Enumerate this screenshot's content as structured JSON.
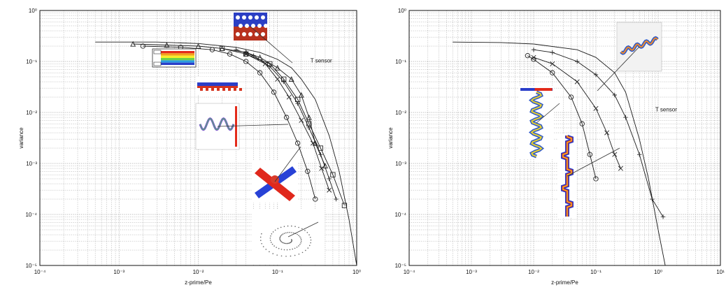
{
  "chart_data": [
    {
      "type": "line",
      "xscale": "log",
      "yscale": "log",
      "xlim": [
        0.0001,
        1
      ],
      "ylim": [
        1e-05,
        1
      ],
      "grid": true,
      "xlabel": "z-prime/Pe",
      "ylabel": "variance",
      "x_ticks": [
        "10⁻⁴",
        "10⁻³",
        "10⁻²",
        "10⁻¹",
        "10⁰"
      ],
      "y_ticks": [
        "10⁰",
        "10⁻¹",
        "10⁻²",
        "10⁻³",
        "10⁻⁴",
        "10⁻⁵"
      ],
      "annotations": [
        {
          "text": "T sensor",
          "x": 0.26,
          "y": 0.095
        }
      ],
      "series": [
        {
          "name": "",
          "marker": "none",
          "x": [
            0.0005,
            0.003,
            0.01,
            0.03,
            0.06,
            0.1,
            0.15,
            0.2,
            0.3,
            0.45,
            0.6,
            0.8,
            1.0
          ],
          "y": [
            0.24,
            0.24,
            0.225,
            0.19,
            0.15,
            0.11,
            0.075,
            0.045,
            0.018,
            0.0035,
            0.0007,
            8e-05,
            1e-05
          ]
        },
        {
          "name": "",
          "marker": "^",
          "x": [
            0.0015,
            0.004,
            0.01,
            0.02,
            0.04,
            0.06,
            0.1,
            0.15,
            0.2,
            0.25,
            0.3,
            0.4
          ],
          "y": [
            0.22,
            0.21,
            0.2,
            0.18,
            0.15,
            0.12,
            0.075,
            0.045,
            0.022,
            0.008,
            0.0025,
            0.0009
          ]
        },
        {
          "name": "",
          "marker": "o",
          "x": [
            0.002,
            0.006,
            0.015,
            0.025,
            0.04,
            0.06,
            0.09,
            0.13,
            0.18,
            0.24,
            0.3
          ],
          "y": [
            0.2,
            0.19,
            0.17,
            0.14,
            0.1,
            0.06,
            0.025,
            0.008,
            0.0025,
            0.0007,
            0.0002
          ]
        },
        {
          "name": "",
          "marker": "square",
          "x": [
            0.02,
            0.04,
            0.08,
            0.12,
            0.18,
            0.25,
            0.35,
            0.5,
            0.7
          ],
          "y": [
            0.18,
            0.14,
            0.09,
            0.045,
            0.018,
            0.006,
            0.002,
            0.0006,
            0.00015
          ]
        },
        {
          "name": "",
          "marker": "+",
          "x": [
            0.03,
            0.05,
            0.08,
            0.12,
            0.18,
            0.25,
            0.35,
            0.45,
            0.55
          ],
          "y": [
            0.17,
            0.13,
            0.08,
            0.04,
            0.015,
            0.005,
            0.0015,
            0.0005,
            0.0002
          ]
        },
        {
          "name": "",
          "marker": "x",
          "x": [
            0.04,
            0.07,
            0.1,
            0.14,
            0.2,
            0.28,
            0.36,
            0.45
          ],
          "y": [
            0.14,
            0.09,
            0.045,
            0.02,
            0.007,
            0.0025,
            0.0008,
            0.0003
          ]
        }
      ],
      "insets": [
        "pillar-array-icon",
        "staggered-channel-icon",
        "channel-groove-icon",
        "sine-channel-icon",
        "cross-junction-icon",
        "spiral-dots-icon"
      ]
    },
    {
      "type": "line",
      "xscale": "log",
      "yscale": "log",
      "xlim": [
        0.0001,
        10
      ],
      "ylim": [
        1e-05,
        1
      ],
      "grid": true,
      "xlabel": "z-prime/Pe",
      "ylabel": "variance",
      "x_ticks": [
        "10⁻⁴",
        "10⁻³",
        "10⁻²",
        "10⁻¹",
        "10⁰",
        "10¹"
      ],
      "y_ticks": [
        "10⁰",
        "10⁻¹",
        "10⁻²",
        "10⁻³",
        "10⁻⁴",
        "10⁻⁵"
      ],
      "annotations": [
        {
          "text": "T sensor",
          "x": 0.9,
          "y": 0.0105
        }
      ],
      "series": [
        {
          "name": "T sensor",
          "marker": "none",
          "x": [
            0.0005,
            0.003,
            0.01,
            0.05,
            0.1,
            0.2,
            0.3,
            0.5,
            0.7,
            1.0,
            1.3
          ],
          "y": [
            0.24,
            0.235,
            0.22,
            0.17,
            0.12,
            0.06,
            0.025,
            0.003,
            0.0005,
            5e-05,
            1e-05
          ]
        },
        {
          "name": "",
          "marker": "+",
          "x": [
            0.01,
            0.02,
            0.05,
            0.1,
            0.2,
            0.3,
            0.5,
            0.8,
            1.2
          ],
          "y": [
            0.17,
            0.15,
            0.1,
            0.055,
            0.022,
            0.008,
            0.0015,
            0.0002,
            9e-05
          ]
        },
        {
          "name": "",
          "marker": "x",
          "x": [
            0.01,
            0.02,
            0.05,
            0.1,
            0.15,
            0.2,
            0.25
          ],
          "y": [
            0.12,
            0.09,
            0.04,
            0.012,
            0.004,
            0.0015,
            0.0008
          ]
        },
        {
          "name": "",
          "marker": "o",
          "x": [
            0.008,
            0.01,
            0.02,
            0.04,
            0.06,
            0.08,
            0.1
          ],
          "y": [
            0.13,
            0.11,
            0.06,
            0.02,
            0.006,
            0.0015,
            0.0005
          ]
        }
      ],
      "insets": [
        "sine-ribbon-icon",
        "serpentine-channel-icon",
        "zigzag-channel-icon"
      ]
    }
  ]
}
